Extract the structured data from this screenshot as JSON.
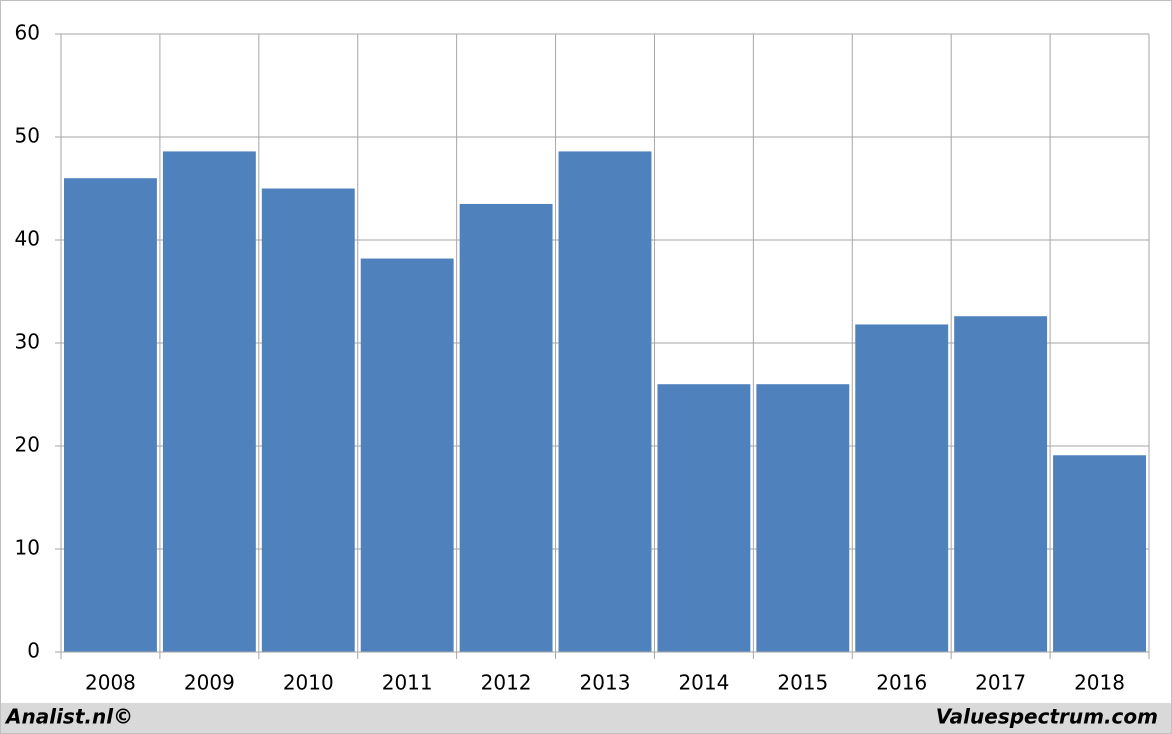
{
  "chart_data": {
    "type": "bar",
    "categories": [
      "2008",
      "2009",
      "2010",
      "2011",
      "2012",
      "2013",
      "2014",
      "2015",
      "2016",
      "2017",
      "2018"
    ],
    "values": [
      46,
      48.6,
      45,
      38.2,
      43.5,
      48.6,
      26,
      26,
      31.8,
      32.6,
      19.1
    ],
    "color": "#4f81bd",
    "ylim": [
      0,
      60
    ],
    "yticks": [
      0,
      10,
      20,
      30,
      40,
      50,
      60
    ],
    "grid": true
  },
  "footer": {
    "left": "Analist.nl©",
    "right": "Valuespectrum.com"
  }
}
